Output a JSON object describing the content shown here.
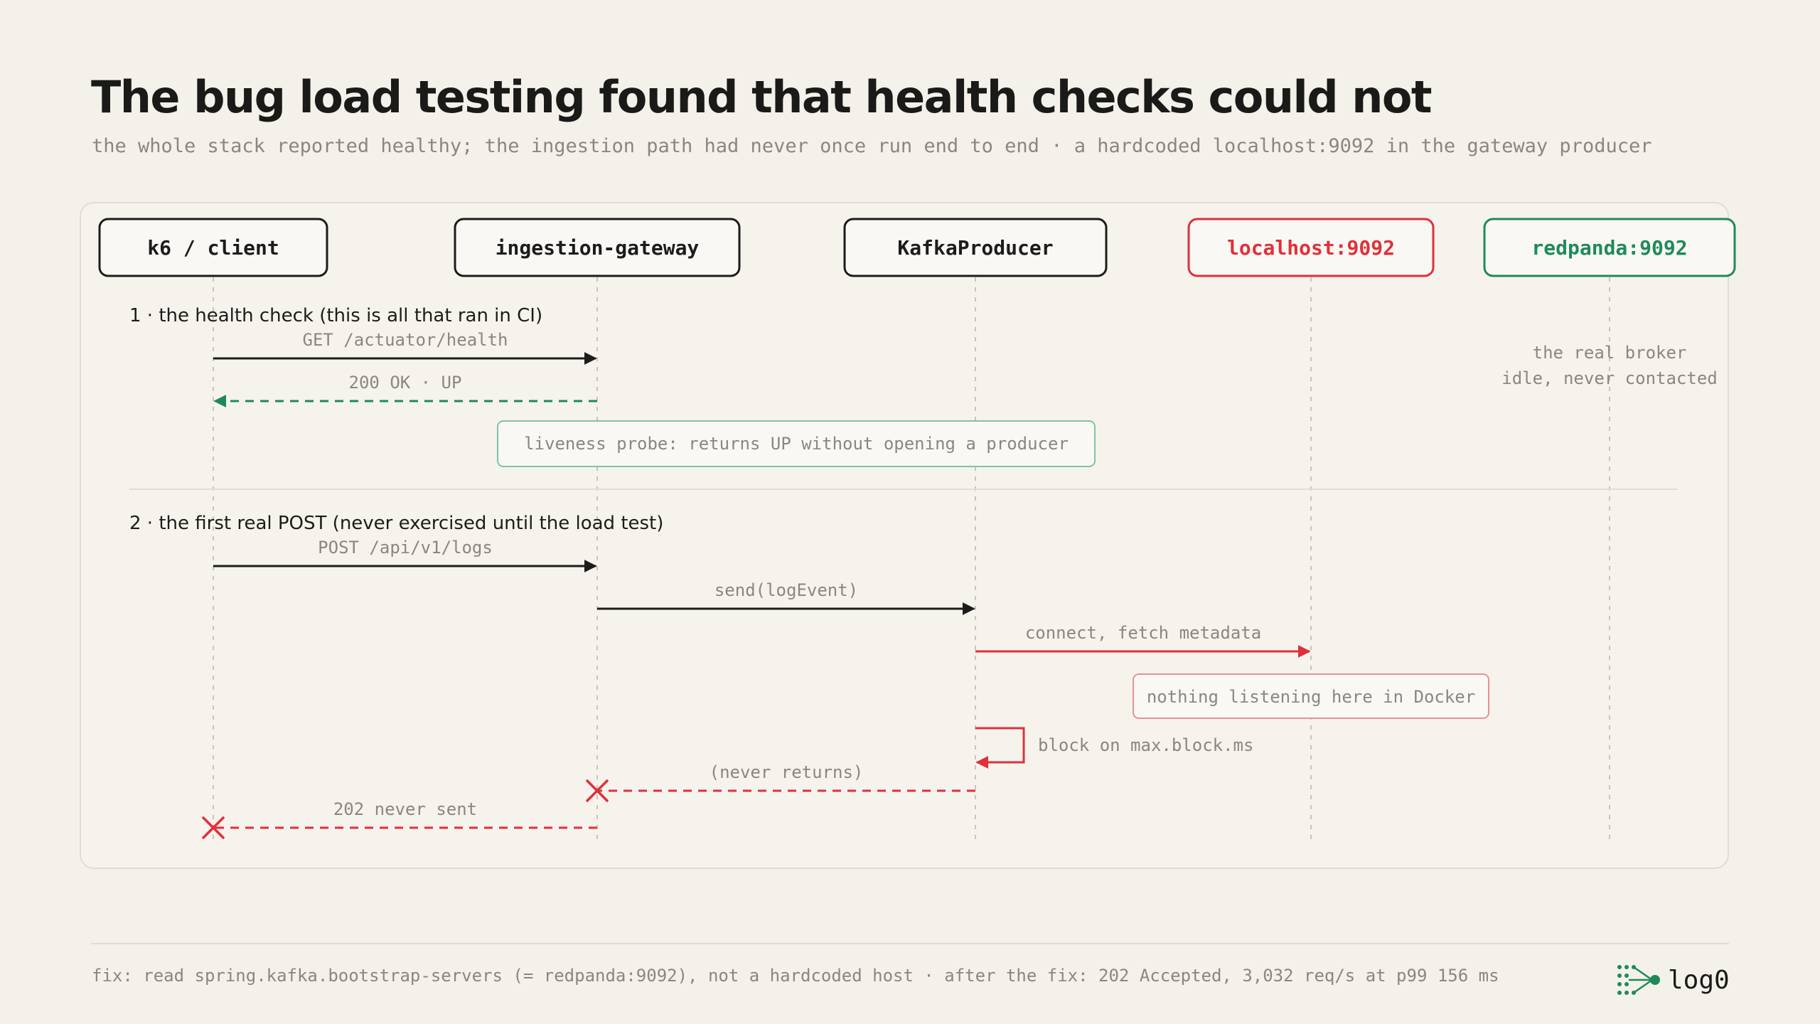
{
  "header": {
    "title": "The bug load testing found that health checks could not",
    "subtitle": "the whole stack reported healthy; the ingestion path had never once run end to end · a hardcoded localhost:9092 in the gateway producer"
  },
  "colors": {
    "ink": "#1c1c1a",
    "ok": "#1e8a5a",
    "error": "#e0303a",
    "muted": "#8a8780"
  },
  "participants": [
    {
      "label": "k6 / client",
      "style": "neutral"
    },
    {
      "label": "ingestion-gateway",
      "style": "neutral"
    },
    {
      "label": "KafkaProducer",
      "style": "neutral"
    },
    {
      "label": "localhost:9092",
      "style": "error"
    },
    {
      "label": "redpanda:9092",
      "style": "ok"
    }
  ],
  "sections": [
    {
      "label": "1 · the health check (this is all that ran in CI)"
    },
    {
      "label": "2 · the first real POST (never exercised until the load test)"
    }
  ],
  "messages": [
    {
      "label": "GET /actuator/health",
      "from": 0,
      "to": 1,
      "kind": "solid"
    },
    {
      "label": "200 OK · UP",
      "from": 1,
      "to": 0,
      "kind": "return-ok"
    },
    {
      "label": "POST /api/v1/logs",
      "from": 0,
      "to": 1,
      "kind": "solid"
    },
    {
      "label": "send(logEvent)",
      "from": 1,
      "to": 2,
      "kind": "solid"
    },
    {
      "label": "connect, fetch metadata",
      "from": 2,
      "to": 3,
      "kind": "error"
    },
    {
      "label": "block on max.block.ms",
      "from": 2,
      "to": 2,
      "kind": "self-error"
    },
    {
      "label": "(never returns)",
      "from": 2,
      "to": 1,
      "kind": "return-error"
    },
    {
      "label": "202 never sent",
      "from": 1,
      "to": 0,
      "kind": "return-error"
    }
  ],
  "notes": {
    "liveness": "liveness probe: returns UP without opening a producer",
    "nothing_listening": "nothing listening here in Docker",
    "real_broker_1": "the real broker",
    "real_broker_2": "idle, never contacted"
  },
  "footer": {
    "text": "fix: read spring.kafka.bootstrap-servers (= redpanda:9092), not a hardcoded host · after the fix: 202 Accepted, 3,032 req/s at p99 156 ms",
    "brand": "log0",
    "brand_icon": "network-dots-icon"
  }
}
